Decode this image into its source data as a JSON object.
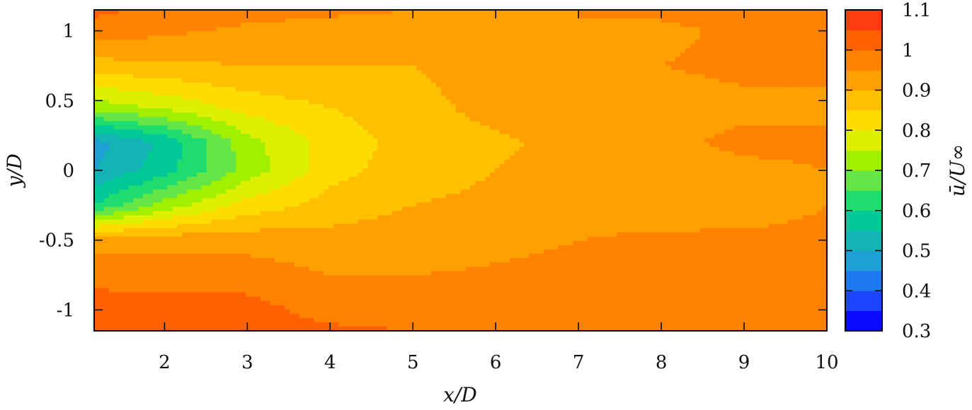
{
  "chart_data": {
    "type": "heatmap",
    "subtype": "filled-contour",
    "title": "",
    "xlabel": "x/D",
    "ylabel": "y/D",
    "colorbar_label": "ū/U∞",
    "xlim": [
      1.15,
      10
    ],
    "ylim": [
      -1.15,
      1.15
    ],
    "x_ticks": [
      2,
      3,
      4,
      5,
      6,
      7,
      8,
      9,
      10
    ],
    "x_tick_labels": [
      "2",
      "3",
      "4",
      "5",
      "6",
      "7",
      "8",
      "9",
      "10"
    ],
    "y_ticks": [
      1,
      0.5,
      0,
      -0.5,
      -1
    ],
    "y_tick_labels": [
      "1",
      "0.5",
      "0",
      "-0.5",
      "-1"
    ],
    "colorbar_range": [
      0.3,
      1.1
    ],
    "colorbar_ticks": [
      1.1,
      1,
      0.9,
      0.8,
      0.7,
      0.6,
      0.5,
      0.4,
      0.3
    ],
    "colorbar_tick_labels": [
      "1.1",
      "1",
      "0.9",
      "0.8",
      "0.7",
      "0.6",
      "0.5",
      "0.4",
      "0.3"
    ],
    "levels": [
      0.3,
      0.35,
      0.4,
      0.45,
      0.5,
      0.55,
      0.6,
      0.65,
      0.7,
      0.75,
      0.8,
      0.85,
      0.9,
      0.95,
      1.0,
      1.05,
      1.1
    ],
    "level_colors": [
      "#0a0aff",
      "#1e46ff",
      "#1e78ee",
      "#1ea0d4",
      "#14b4b4",
      "#00c896",
      "#1edc6e",
      "#64e646",
      "#a0f000",
      "#dcf000",
      "#ffdc00",
      "#ffc000",
      "#ffa000",
      "#ff8200",
      "#ff6000",
      "#ff3c10",
      "#ff0000"
    ],
    "x": [
      1.15,
      2,
      3,
      4,
      5,
      6,
      7,
      8,
      9,
      10
    ],
    "y": [
      -1.15,
      -1,
      -0.5,
      -0.25,
      0,
      0.2,
      0.45,
      0.75,
      1,
      1.15
    ],
    "z": [
      [
        1.02,
        1.02,
        1.02,
        1.01,
        1.0,
        0.97,
        0.97,
        0.96,
        0.97,
        0.97
      ],
      [
        1.03,
        1.02,
        1.02,
        0.98,
        0.97,
        0.97,
        0.97,
        0.96,
        0.97,
        0.97
      ],
      [
        0.93,
        0.93,
        0.93,
        0.92,
        0.93,
        0.94,
        0.95,
        0.96,
        0.96,
        0.96
      ],
      [
        0.6,
        0.72,
        0.82,
        0.87,
        0.9,
        0.91,
        0.93,
        0.92,
        0.93,
        0.95
      ],
      [
        0.5,
        0.58,
        0.72,
        0.83,
        0.88,
        0.9,
        0.92,
        0.93,
        0.94,
        0.95
      ],
      [
        0.48,
        0.56,
        0.73,
        0.82,
        0.87,
        0.89,
        0.92,
        0.94,
        0.96,
        0.96
      ],
      [
        0.72,
        0.76,
        0.82,
        0.85,
        0.88,
        0.92,
        0.94,
        0.93,
        0.94,
        0.94
      ],
      [
        0.88,
        0.89,
        0.9,
        0.9,
        0.9,
        0.93,
        0.94,
        0.95,
        0.96,
        0.96
      ],
      [
        0.98,
        0.96,
        0.94,
        0.93,
        0.93,
        0.94,
        0.95,
        0.94,
        0.96,
        0.97
      ],
      [
        1.01,
        0.99,
        0.97,
        0.96,
        0.95,
        0.95,
        0.95,
        0.96,
        0.97,
        0.97
      ]
    ]
  }
}
